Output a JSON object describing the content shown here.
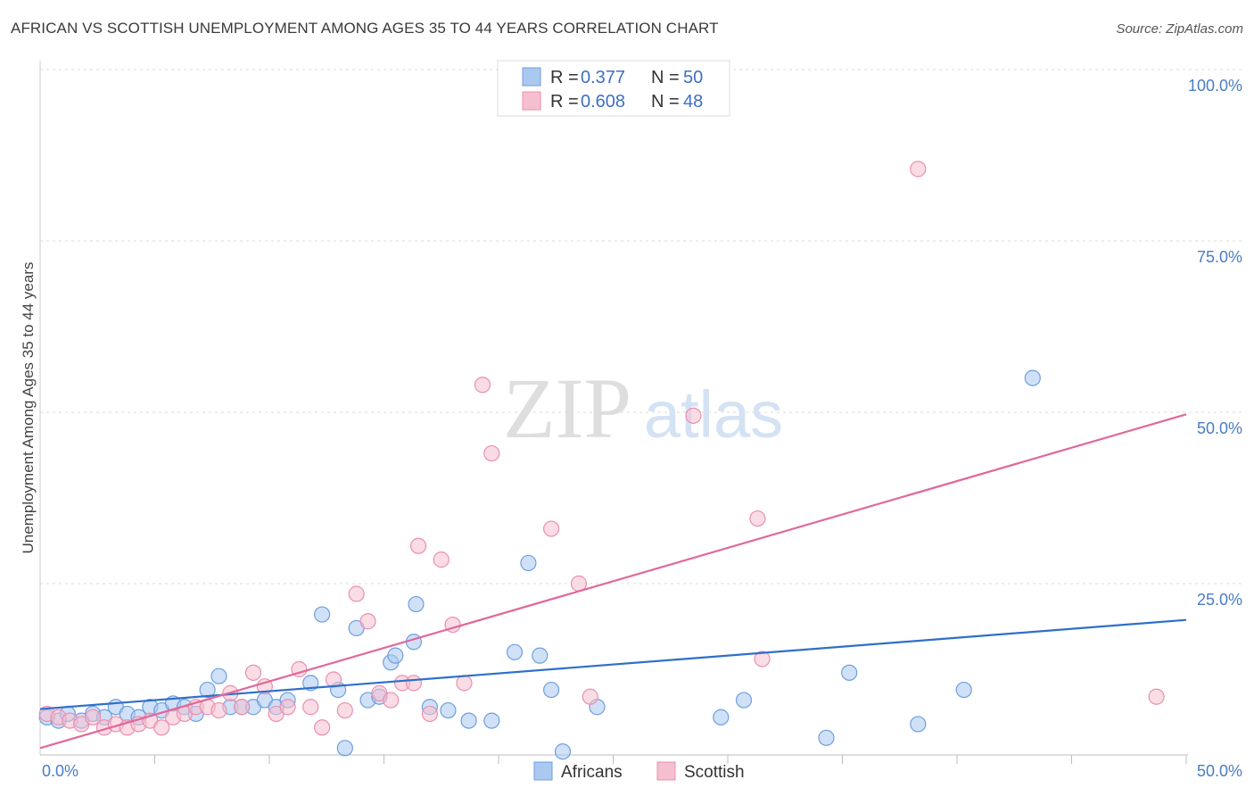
{
  "header": {
    "title": "AFRICAN VS SCOTTISH UNEMPLOYMENT AMONG AGES 35 TO 44 YEARS CORRELATION CHART",
    "source": "Source: ZipAtlas.com"
  },
  "watermark": {
    "zip": "ZIP",
    "atlas": "atlas"
  },
  "legend": {
    "africans": {
      "r_label": "R =",
      "r_value": "0.377",
      "n_label": "N =",
      "n_value": "50"
    },
    "scottish": {
      "r_label": "R =",
      "r_value": "0.608",
      "n_label": "N =",
      "n_value": "48"
    }
  },
  "colors": {
    "africans_fill": "#aac8f0",
    "africans_stroke": "#6d9fe0",
    "africans_line": "#2f6fc9",
    "scottish_fill": "#f6bfd0",
    "scottish_stroke": "#ea8faf",
    "scottish_line": "#e0689a",
    "grid": "#d9d9d9",
    "tick_label": "#4a7cc7"
  },
  "chart_data": {
    "type": "scatter",
    "title": "AFRICAN VS SCOTTISH UNEMPLOYMENT AMONG AGES 35 TO 44 YEARS CORRELATION CHART",
    "xlabel": "",
    "ylabel": "Unemployment Among Ages 35 to 44 years",
    "xlim": [
      0,
      50
    ],
    "ylim": [
      0,
      100
    ],
    "x_ticks": [
      {
        "value": 0,
        "label": "0.0%"
      },
      {
        "value": 50,
        "label": "50.0%"
      }
    ],
    "y_ticks": [
      {
        "value": 25,
        "label": "25.0%"
      },
      {
        "value": 50,
        "label": "50.0%"
      },
      {
        "value": 75,
        "label": "75.0%"
      },
      {
        "value": 100,
        "label": "100.0%"
      }
    ],
    "grid": true,
    "legend_position": "top-center",
    "series": [
      {
        "name": "Africans",
        "r": 0.377,
        "n": 50,
        "trend": {
          "x": [
            0,
            50
          ],
          "y": [
            6.7,
            19.7
          ]
        },
        "points": [
          [
            0.3,
            5.5
          ],
          [
            0.8,
            5.0
          ],
          [
            1.2,
            6.0
          ],
          [
            1.8,
            5.0
          ],
          [
            2.3,
            6.0
          ],
          [
            2.8,
            5.5
          ],
          [
            3.3,
            7.0
          ],
          [
            3.8,
            6.0
          ],
          [
            4.3,
            5.5
          ],
          [
            4.8,
            7.0
          ],
          [
            5.3,
            6.5
          ],
          [
            5.8,
            7.5
          ],
          [
            6.3,
            7.0
          ],
          [
            6.8,
            6.0
          ],
          [
            7.3,
            9.5
          ],
          [
            7.8,
            11.5
          ],
          [
            8.3,
            7.0
          ],
          [
            8.8,
            7.0
          ],
          [
            9.3,
            7.0
          ],
          [
            9.8,
            8.0
          ],
          [
            10.3,
            7.0
          ],
          [
            10.8,
            8.0
          ],
          [
            11.8,
            10.5
          ],
          [
            12.3,
            20.5
          ],
          [
            13.0,
            9.5
          ],
          [
            13.3,
            1.0
          ],
          [
            13.8,
            18.5
          ],
          [
            14.3,
            8.0
          ],
          [
            14.8,
            8.5
          ],
          [
            15.3,
            13.5
          ],
          [
            15.5,
            14.5
          ],
          [
            16.3,
            16.5
          ],
          [
            16.4,
            22.0
          ],
          [
            17.0,
            7.0
          ],
          [
            17.8,
            6.5
          ],
          [
            18.7,
            5.0
          ],
          [
            19.7,
            5.0
          ],
          [
            20.7,
            15.0
          ],
          [
            21.3,
            28.0
          ],
          [
            21.8,
            14.5
          ],
          [
            22.3,
            9.5
          ],
          [
            22.8,
            0.5
          ],
          [
            24.3,
            7.0
          ],
          [
            29.7,
            5.5
          ],
          [
            30.7,
            8.0
          ],
          [
            34.3,
            2.5
          ],
          [
            35.3,
            12.0
          ],
          [
            38.3,
            4.5
          ],
          [
            40.3,
            9.5
          ],
          [
            43.3,
            55.0
          ]
        ]
      },
      {
        "name": "Scottish",
        "r": 0.608,
        "n": 48,
        "trend": {
          "x": [
            0,
            50
          ],
          "y": [
            1.0,
            49.7
          ]
        },
        "points": [
          [
            0.3,
            6.0
          ],
          [
            0.8,
            5.5
          ],
          [
            1.3,
            5.0
          ],
          [
            1.8,
            4.5
          ],
          [
            2.3,
            5.5
          ],
          [
            2.8,
            4.0
          ],
          [
            3.3,
            4.5
          ],
          [
            3.8,
            4.0
          ],
          [
            4.3,
            4.5
          ],
          [
            4.8,
            5.0
          ],
          [
            5.3,
            4.0
          ],
          [
            5.8,
            5.5
          ],
          [
            6.3,
            6.0
          ],
          [
            6.8,
            7.0
          ],
          [
            7.3,
            7.0
          ],
          [
            7.8,
            6.5
          ],
          [
            8.3,
            9.0
          ],
          [
            8.8,
            7.0
          ],
          [
            9.3,
            12.0
          ],
          [
            9.8,
            10.0
          ],
          [
            10.3,
            6.0
          ],
          [
            10.8,
            7.0
          ],
          [
            11.3,
            12.5
          ],
          [
            11.8,
            7.0
          ],
          [
            12.3,
            4.0
          ],
          [
            12.8,
            11.0
          ],
          [
            13.3,
            6.5
          ],
          [
            13.8,
            23.5
          ],
          [
            14.3,
            19.5
          ],
          [
            14.8,
            9.0
          ],
          [
            15.3,
            8.0
          ],
          [
            15.8,
            10.5
          ],
          [
            16.3,
            10.5
          ],
          [
            16.5,
            30.5
          ],
          [
            17.0,
            6.0
          ],
          [
            17.5,
            28.5
          ],
          [
            18.0,
            19.0
          ],
          [
            18.5,
            10.5
          ],
          [
            19.3,
            54.0
          ],
          [
            19.7,
            44.0
          ],
          [
            22.3,
            33.0
          ],
          [
            23.5,
            25.0
          ],
          [
            24.0,
            8.5
          ],
          [
            28.5,
            49.5
          ],
          [
            31.3,
            34.5
          ],
          [
            31.5,
            14.0
          ],
          [
            38.3,
            85.5
          ],
          [
            48.7,
            8.5
          ]
        ]
      }
    ]
  }
}
